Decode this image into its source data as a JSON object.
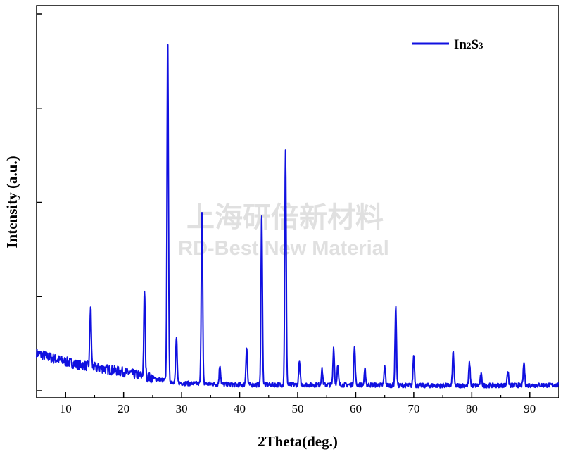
{
  "chart_data": {
    "type": "line",
    "title": "",
    "xlabel": "2Theta(deg.)",
    "ylabel": "Intensity (a.u.)",
    "xlim": [
      5,
      95
    ],
    "ylim": [
      0,
      100
    ],
    "x_ticks": [
      10,
      20,
      30,
      40,
      50,
      60,
      70,
      80,
      90
    ],
    "x_tick_labels": [
      "10",
      "20",
      "30",
      "40",
      "50",
      "60",
      "70",
      "80",
      "90"
    ],
    "y_tick_labels_shown": false,
    "grid": false,
    "legend_position": "top-right",
    "series": [
      {
        "name": "In2S3",
        "color": "#1010e0",
        "baseline": [
          [
            5,
            10
          ],
          [
            8,
            8.5
          ],
          [
            12,
            7
          ],
          [
            20,
            5
          ],
          [
            26,
            3
          ],
          [
            30,
            2
          ],
          [
            40,
            1.6
          ],
          [
            50,
            1.6
          ],
          [
            60,
            1.6
          ],
          [
            70,
            1.4
          ],
          [
            80,
            1.4
          ],
          [
            95,
            1.5
          ]
        ],
        "peaks": [
          {
            "x": 14.3,
            "height": 16
          },
          {
            "x": 23.6,
            "height": 23
          },
          {
            "x": 27.6,
            "height": 91
          },
          {
            "x": 29.1,
            "height": 12
          },
          {
            "x": 33.5,
            "height": 46
          },
          {
            "x": 36.6,
            "height": 5
          },
          {
            "x": 41.2,
            "height": 10
          },
          {
            "x": 43.8,
            "height": 46
          },
          {
            "x": 47.9,
            "height": 62
          },
          {
            "x": 50.3,
            "height": 6
          },
          {
            "x": 54.2,
            "height": 4
          },
          {
            "x": 56.2,
            "height": 10
          },
          {
            "x": 56.9,
            "height": 5
          },
          {
            "x": 59.8,
            "height": 10
          },
          {
            "x": 61.6,
            "height": 4
          },
          {
            "x": 65.0,
            "height": 5
          },
          {
            "x": 66.9,
            "height": 21
          },
          {
            "x": 70.0,
            "height": 8
          },
          {
            "x": 76.8,
            "height": 9
          },
          {
            "x": 79.6,
            "height": 6
          },
          {
            "x": 81.6,
            "height": 3
          },
          {
            "x": 86.2,
            "height": 4
          },
          {
            "x": 89.0,
            "height": 6
          }
        ]
      }
    ]
  },
  "legend": {
    "color": "#1010e0",
    "label_main": "In",
    "label_sub1": "2",
    "label_mid": "S",
    "label_sub2": "3"
  },
  "watermark": {
    "cn": "上海研倍新材料",
    "en": "RD-Best New Material"
  }
}
